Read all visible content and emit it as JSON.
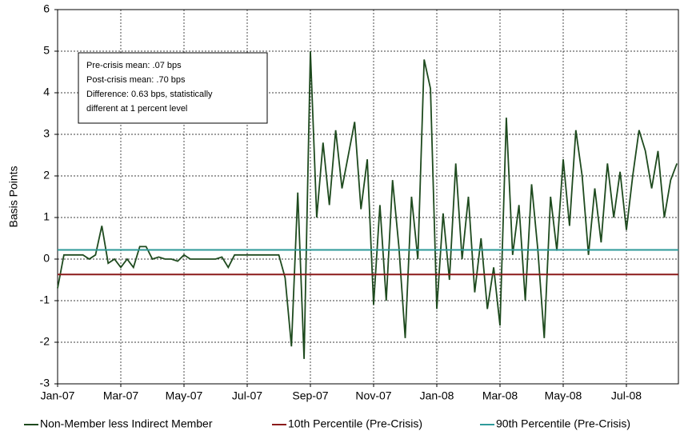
{
  "chart_data": {
    "type": "line",
    "y_label": "Basis Points",
    "annotation": [
      "Pre-crisis mean: .07 bps",
      "Post-crisis mean: .70 bps",
      "Difference: 0.63 bps, statistically",
      "different at 1 percent level"
    ],
    "categories": [
      "Jan-07",
      null,
      null,
      null,
      null,
      null,
      null,
      null,
      null,
      null,
      "Mar-07",
      null,
      null,
      null,
      null,
      null,
      null,
      null,
      null,
      null,
      "May-07",
      null,
      null,
      null,
      null,
      null,
      null,
      null,
      null,
      null,
      "Jul-07",
      null,
      null,
      null,
      null,
      null,
      null,
      null,
      null,
      null,
      "Sep-07",
      null,
      null,
      null,
      null,
      null,
      null,
      null,
      null,
      null,
      "Nov-07",
      null,
      null,
      null,
      null,
      null,
      null,
      null,
      null,
      null,
      "Jan-08",
      null,
      null,
      null,
      null,
      null,
      null,
      null,
      null,
      null,
      "Mar-08",
      null,
      null,
      null,
      null,
      null,
      null,
      null,
      null,
      null,
      "May-08",
      null,
      null,
      null,
      null,
      null,
      null,
      null,
      null,
      null,
      "Jul-08",
      null,
      null,
      null,
      null,
      null,
      null,
      null,
      null
    ],
    "series": [
      {
        "name": "Non-Member less Indirect Member",
        "color": "#1e4a1e",
        "values": [
          -0.7,
          0.1,
          0.1,
          0.1,
          0.1,
          0.0,
          0.1,
          0.8,
          -0.1,
          0.0,
          -0.2,
          0.0,
          -0.2,
          0.3,
          0.3,
          0.0,
          0.05,
          0.0,
          0.0,
          -0.05,
          0.1,
          0.0,
          0.0,
          0.0,
          0.0,
          0.0,
          0.05,
          -0.2,
          0.1,
          0.1,
          0.1,
          0.1,
          0.1,
          0.1,
          0.1,
          0.1,
          -0.45,
          -2.1,
          1.6,
          -2.4,
          5.0,
          1.0,
          2.8,
          1.3,
          3.1,
          1.7,
          2.5,
          3.3,
          1.2,
          2.4,
          -1.1,
          1.3,
          -1.0,
          1.9,
          0.3,
          -1.9,
          1.5,
          0.0,
          4.8,
          4.1,
          -1.2,
          1.1,
          -0.5,
          2.3,
          0.0,
          1.5,
          -0.8,
          0.5,
          -1.2,
          -0.2,
          -1.6,
          3.4,
          0.1,
          1.3,
          -1.0,
          1.8,
          0.2,
          -1.9,
          1.5,
          0.2,
          2.4,
          0.8,
          3.1,
          2.0,
          0.1,
          1.7,
          0.4,
          2.3,
          1.0,
          2.1,
          0.7,
          2.0,
          3.1,
          2.6,
          1.7,
          2.6,
          1.0,
          1.9,
          2.3
        ]
      },
      {
        "name": "10th Percentile (Pre-Crisis)",
        "color": "#8b1a1a",
        "value": -0.37
      },
      {
        "name": "90th Percentile (Pre-Crisis)",
        "color": "#2e9a9a",
        "value": 0.22
      }
    ],
    "ylim": [
      -3,
      6
    ],
    "yticks": [
      -3,
      -2,
      -1,
      0,
      1,
      2,
      3,
      4,
      5,
      6
    ],
    "grid": true
  }
}
